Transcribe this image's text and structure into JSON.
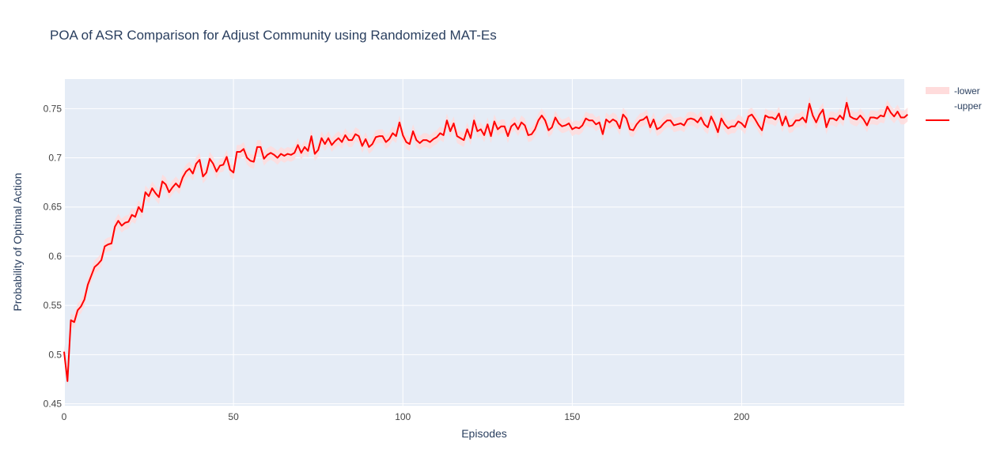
{
  "chart_data": {
    "type": "line",
    "title": "POA of ASR Comparison for Adjust Community using Randomized MAT-Es",
    "xlabel": "Episodes",
    "ylabel": "Probability of Optimal Action",
    "xlim": [
      0,
      248
    ],
    "ylim": [
      0.448,
      0.78
    ],
    "xticks": [
      0,
      50,
      100,
      150,
      200
    ],
    "xtick_labels": [
      "0",
      "50",
      "100",
      "150",
      "200"
    ],
    "yticks": [
      0.45,
      0.5,
      0.55,
      0.6,
      0.65,
      0.7,
      0.75
    ],
    "ytick_labels": [
      "0.45",
      "0.5",
      "0.55",
      "0.6",
      "0.65",
      "0.7",
      "0.75"
    ],
    "grid": true,
    "legend_position": "top-right",
    "colors": {
      "line": "#ff0000",
      "band": "#ffdcdc",
      "plot_bg": "#e5ecf6",
      "grid": "#ffffff",
      "text": "#2a3f5f",
      "tick_text": "#444444"
    },
    "band_halfwidth": 0.007,
    "series": [
      {
        "name": "-lower",
        "type": "band"
      },
      {
        "name": "-upper",
        "type": "band"
      },
      {
        "name": "",
        "type": "line",
        "x_start": 0,
        "x_step": 1,
        "y": [
          0.503,
          0.473,
          0.535,
          0.533,
          0.545,
          0.549,
          0.556,
          0.571,
          0.58,
          0.589,
          0.592,
          0.596,
          0.61,
          0.612,
          0.613,
          0.63,
          0.636,
          0.631,
          0.634,
          0.635,
          0.642,
          0.64,
          0.65,
          0.645,
          0.665,
          0.661,
          0.669,
          0.664,
          0.66,
          0.676,
          0.673,
          0.665,
          0.67,
          0.674,
          0.67,
          0.68,
          0.686,
          0.689,
          0.684,
          0.694,
          0.698,
          0.681,
          0.685,
          0.699,
          0.694,
          0.686,
          0.692,
          0.693,
          0.701,
          0.688,
          0.685,
          0.706,
          0.706,
          0.709,
          0.7,
          0.697,
          0.696,
          0.711,
          0.711,
          0.699,
          0.703,
          0.705,
          0.703,
          0.7,
          0.704,
          0.702,
          0.704,
          0.703,
          0.705,
          0.713,
          0.705,
          0.711,
          0.707,
          0.722,
          0.704,
          0.708,
          0.72,
          0.714,
          0.72,
          0.713,
          0.717,
          0.72,
          0.716,
          0.723,
          0.718,
          0.718,
          0.724,
          0.722,
          0.712,
          0.719,
          0.711,
          0.714,
          0.721,
          0.722,
          0.722,
          0.716,
          0.719,
          0.725,
          0.722,
          0.736,
          0.723,
          0.716,
          0.714,
          0.727,
          0.718,
          0.715,
          0.718,
          0.718,
          0.716,
          0.719,
          0.721,
          0.725,
          0.723,
          0.738,
          0.727,
          0.735,
          0.722,
          0.72,
          0.718,
          0.729,
          0.72,
          0.738,
          0.727,
          0.729,
          0.723,
          0.734,
          0.722,
          0.737,
          0.729,
          0.732,
          0.732,
          0.722,
          0.732,
          0.735,
          0.729,
          0.736,
          0.733,
          0.723,
          0.724,
          0.729,
          0.738,
          0.743,
          0.738,
          0.728,
          0.731,
          0.741,
          0.735,
          0.732,
          0.733,
          0.735,
          0.729,
          0.731,
          0.73,
          0.733,
          0.74,
          0.738,
          0.738,
          0.734,
          0.736,
          0.724,
          0.739,
          0.736,
          0.739,
          0.737,
          0.73,
          0.744,
          0.74,
          0.729,
          0.728,
          0.734,
          0.738,
          0.739,
          0.742,
          0.731,
          0.739,
          0.729,
          0.731,
          0.735,
          0.738,
          0.738,
          0.733,
          0.734,
          0.735,
          0.733,
          0.739,
          0.74,
          0.739,
          0.736,
          0.741,
          0.734,
          0.731,
          0.742,
          0.735,
          0.726,
          0.74,
          0.734,
          0.73,
          0.732,
          0.732,
          0.737,
          0.735,
          0.731,
          0.742,
          0.744,
          0.739,
          0.733,
          0.728,
          0.743,
          0.741,
          0.741,
          0.739,
          0.745,
          0.733,
          0.742,
          0.732,
          0.733,
          0.738,
          0.738,
          0.741,
          0.736,
          0.755,
          0.743,
          0.736,
          0.744,
          0.749,
          0.731,
          0.74,
          0.74,
          0.738,
          0.743,
          0.739,
          0.756,
          0.742,
          0.74,
          0.739,
          0.743,
          0.739,
          0.733,
          0.741,
          0.741,
          0.74,
          0.743,
          0.742,
          0.752,
          0.746,
          0.742,
          0.747,
          0.741,
          0.741,
          0.744
        ]
      }
    ]
  }
}
